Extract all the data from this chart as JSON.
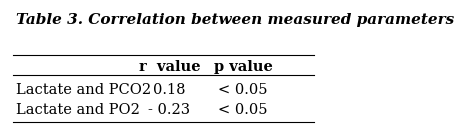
{
  "title": "Table 3. Correlation between measured parameters",
  "col_headers": [
    "",
    "r  value",
    "p value"
  ],
  "rows": [
    [
      "Lactate and PCO2",
      "0.18",
      "< 0.05"
    ],
    [
      "Lactate and PO2",
      "- 0.23",
      "< 0.05"
    ]
  ],
  "background_color": "#ffffff",
  "title_fontsize": 11,
  "body_fontsize": 10.5,
  "header_fontsize": 10.5
}
